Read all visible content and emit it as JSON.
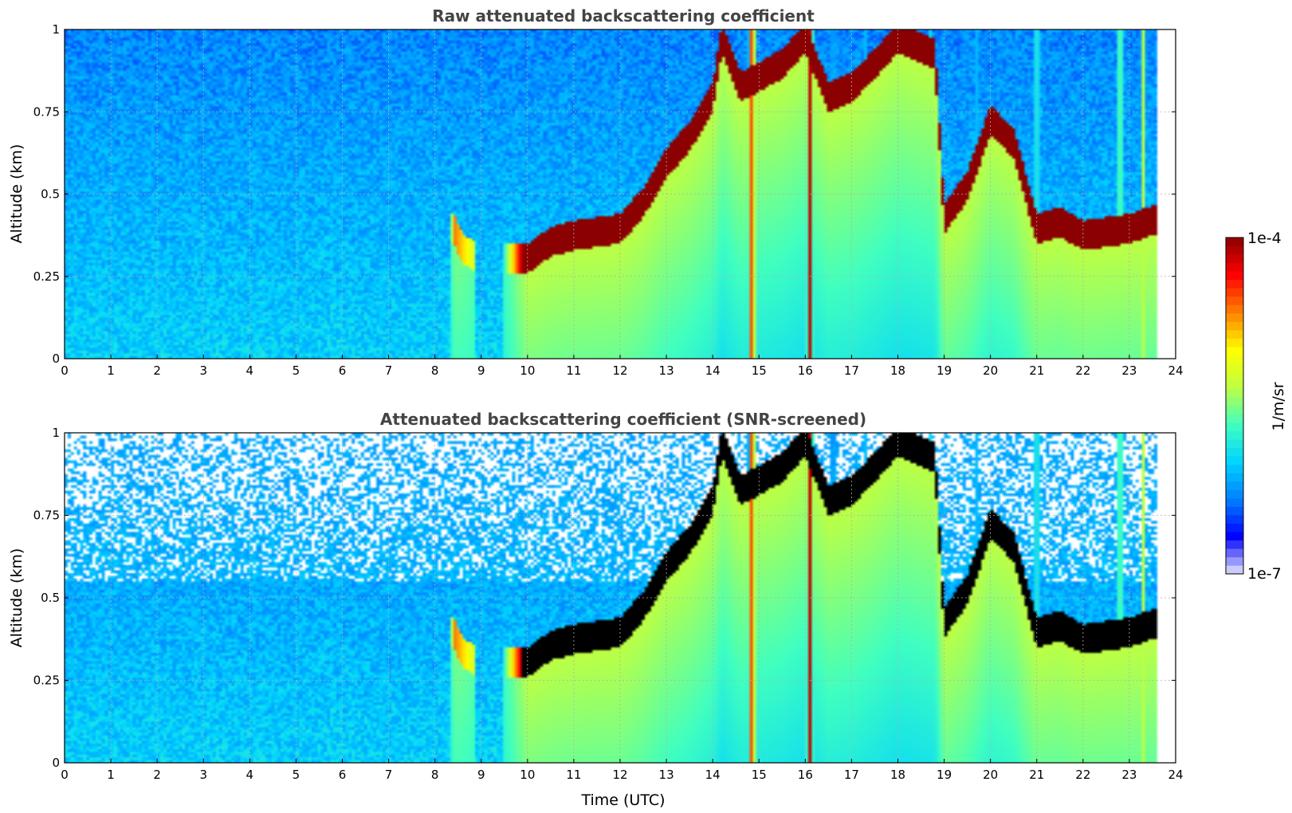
{
  "colormap": [
    "#e6e6fa",
    "#0000ff",
    "#0080ff",
    "#00d4ff",
    "#40ffc0",
    "#c0ff40",
    "#ffff00",
    "#ff8000",
    "#ff0000",
    "#8b0000"
  ],
  "saturated_color": "#000000",
  "colorbar": {
    "label": "1/m/sr",
    "max_label": "1e-4",
    "min_label": "1e-7",
    "range_log10": [
      -7,
      -4
    ]
  },
  "chart_data": [
    {
      "type": "heatmap",
      "title": "Raw attenuated backscattering coefficient",
      "xlabel": "",
      "ylabel": "Altitude (km)",
      "xlim": [
        0,
        24
      ],
      "ylim": [
        0,
        1
      ],
      "x_ticks": [
        "0",
        "1",
        "2",
        "3",
        "4",
        "5",
        "6",
        "7",
        "8",
        "9",
        "10",
        "11",
        "12",
        "13",
        "14",
        "15",
        "16",
        "17",
        "18",
        "19",
        "20",
        "21",
        "22",
        "23",
        "24"
      ],
      "y_ticks": [
        "0",
        "0.25",
        "0.5",
        "0.75",
        "1"
      ],
      "grid": true,
      "units": "log10(1/m/sr)",
      "layer_top_km": [
        [
          0,
          null
        ],
        [
          8.4,
          0.42
        ],
        [
          8.6,
          0.36
        ],
        [
          8.8,
          0.34
        ],
        [
          9.0,
          null
        ],
        [
          10.0,
          0.33
        ],
        [
          10.5,
          0.38
        ],
        [
          11.0,
          0.4
        ],
        [
          12.0,
          0.42
        ],
        [
          12.5,
          0.5
        ],
        [
          13.0,
          0.62
        ],
        [
          13.5,
          0.7
        ],
        [
          14.0,
          0.82
        ],
        [
          14.2,
          1.0
        ],
        [
          14.6,
          0.85
        ],
        [
          15.5,
          0.92
        ],
        [
          16.0,
          1.0
        ],
        [
          16.5,
          0.82
        ],
        [
          17.0,
          0.85
        ],
        [
          17.5,
          0.92
        ],
        [
          18.0,
          1.0
        ],
        [
          18.8,
          0.95
        ],
        [
          19.0,
          0.45
        ],
        [
          19.5,
          0.55
        ],
        [
          20.0,
          0.75
        ],
        [
          20.5,
          0.68
        ],
        [
          21.0,
          0.42
        ],
        [
          21.5,
          0.44
        ],
        [
          22.0,
          0.4
        ],
        [
          23.0,
          0.42
        ],
        [
          23.6,
          0.45
        ]
      ],
      "layer_strength": [
        [
          0,
          0.0
        ],
        [
          8.3,
          0.0
        ],
        [
          8.4,
          0.7
        ],
        [
          8.9,
          0.5
        ],
        [
          9.2,
          0.0
        ],
        [
          10.0,
          1.0
        ],
        [
          23.6,
          1.0
        ]
      ],
      "columns": [
        {
          "x": 14.85,
          "strength": 0.95
        },
        {
          "x": 16.1,
          "strength": 0.95
        },
        {
          "x": 16.6,
          "strength": 0.35
        },
        {
          "x": 17.3,
          "strength": 0.3
        },
        {
          "x": 18.7,
          "strength": 0.35
        },
        {
          "x": 19.7,
          "strength": 0.3
        },
        {
          "x": 21.0,
          "strength": 0.5
        },
        {
          "x": 22.8,
          "strength": 0.6
        },
        {
          "x": 23.3,
          "strength": 0.55
        }
      ],
      "data_end_hour": 23.6,
      "screened": false
    },
    {
      "type": "heatmap",
      "title": "Attenuated backscattering coefficient (SNR-screened)",
      "xlabel": "Time (UTC)",
      "ylabel": "Altitude (km)",
      "xlim": [
        0,
        24
      ],
      "ylim": [
        0,
        1
      ],
      "x_ticks": [
        "0",
        "1",
        "2",
        "3",
        "4",
        "5",
        "6",
        "7",
        "8",
        "9",
        "10",
        "11",
        "12",
        "13",
        "14",
        "15",
        "16",
        "17",
        "18",
        "19",
        "20",
        "21",
        "22",
        "23",
        "24"
      ],
      "y_ticks": [
        "0",
        "0.25",
        "0.5",
        "0.75",
        "1"
      ],
      "grid": true,
      "units": "log10(1/m/sr)",
      "layer_top_km": [
        [
          0,
          null
        ],
        [
          8.4,
          0.42
        ],
        [
          8.6,
          0.36
        ],
        [
          8.8,
          0.34
        ],
        [
          9.0,
          null
        ],
        [
          10.0,
          0.33
        ],
        [
          10.5,
          0.38
        ],
        [
          11.0,
          0.4
        ],
        [
          12.0,
          0.42
        ],
        [
          12.5,
          0.5
        ],
        [
          13.0,
          0.62
        ],
        [
          13.5,
          0.7
        ],
        [
          14.0,
          0.82
        ],
        [
          14.2,
          1.0
        ],
        [
          14.6,
          0.85
        ],
        [
          15.5,
          0.92
        ],
        [
          16.0,
          1.0
        ],
        [
          16.5,
          0.82
        ],
        [
          17.0,
          0.85
        ],
        [
          17.5,
          0.92
        ],
        [
          18.0,
          1.0
        ],
        [
          18.8,
          0.95
        ],
        [
          19.0,
          0.45
        ],
        [
          19.5,
          0.55
        ],
        [
          20.0,
          0.75
        ],
        [
          20.5,
          0.68
        ],
        [
          21.0,
          0.42
        ],
        [
          21.5,
          0.44
        ],
        [
          22.0,
          0.4
        ],
        [
          23.0,
          0.42
        ],
        [
          23.6,
          0.45
        ]
      ],
      "layer_strength": [
        [
          0,
          0.0
        ],
        [
          8.3,
          0.0
        ],
        [
          8.4,
          0.7
        ],
        [
          8.9,
          0.5
        ],
        [
          9.2,
          0.0
        ],
        [
          10.0,
          1.0
        ],
        [
          23.6,
          1.0
        ]
      ],
      "columns": [
        {
          "x": 14.85,
          "strength": 0.95
        },
        {
          "x": 16.1,
          "strength": 0.95
        },
        {
          "x": 16.6,
          "strength": 0.35
        },
        {
          "x": 17.3,
          "strength": 0.3
        },
        {
          "x": 18.7,
          "strength": 0.35
        },
        {
          "x": 19.7,
          "strength": 0.3
        },
        {
          "x": 21.0,
          "strength": 0.5
        },
        {
          "x": 22.8,
          "strength": 0.6
        },
        {
          "x": 23.3,
          "strength": 0.55
        }
      ],
      "data_end_hour": 23.6,
      "screened": true
    }
  ]
}
